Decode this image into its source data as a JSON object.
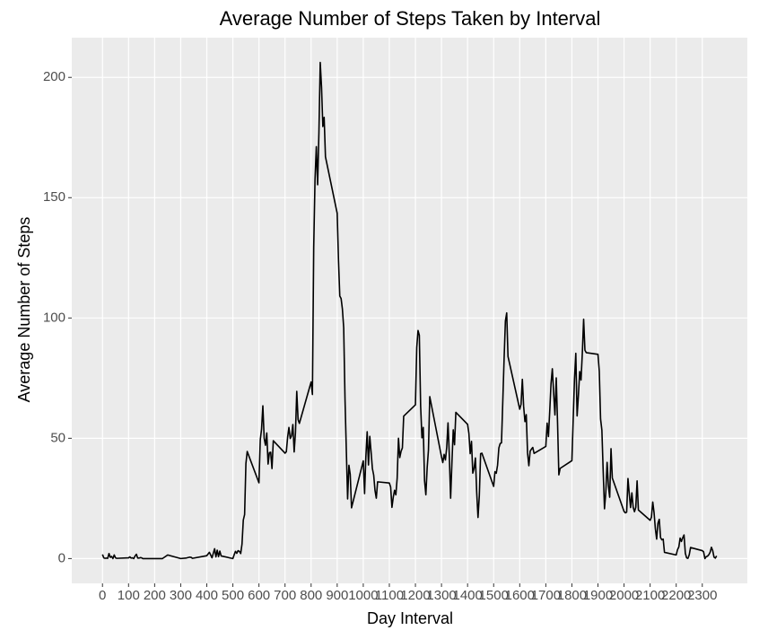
{
  "chart_data": {
    "type": "line",
    "title": "Average Number of Steps Taken by Interval",
    "x_label": "Day Interval",
    "y_label": "Average Number of Steps",
    "x": [
      0,
      5,
      10,
      15,
      20,
      25,
      30,
      35,
      40,
      45,
      50,
      55,
      100,
      105,
      110,
      115,
      120,
      125,
      130,
      135,
      140,
      145,
      150,
      155,
      200,
      230,
      250,
      300,
      320,
      335,
      340,
      345,
      400,
      410,
      420,
      430,
      435,
      440,
      445,
      450,
      455,
      500,
      505,
      510,
      515,
      520,
      525,
      530,
      535,
      540,
      545,
      550,
      555,
      600,
      605,
      610,
      615,
      620,
      625,
      630,
      635,
      640,
      645,
      650,
      655,
      700,
      705,
      710,
      715,
      720,
      725,
      730,
      735,
      740,
      745,
      750,
      755,
      800,
      805,
      810,
      815,
      820,
      825,
      830,
      835,
      840,
      845,
      850,
      855,
      900,
      905,
      910,
      915,
      920,
      925,
      930,
      935,
      940,
      945,
      950,
      955,
      1000,
      1005,
      1010,
      1015,
      1020,
      1025,
      1030,
      1035,
      1040,
      1045,
      1050,
      1055,
      1100,
      1105,
      1110,
      1115,
      1120,
      1125,
      1130,
      1135,
      1140,
      1145,
      1150,
      1155,
      1200,
      1205,
      1210,
      1215,
      1220,
      1225,
      1230,
      1235,
      1240,
      1245,
      1250,
      1255,
      1300,
      1305,
      1310,
      1315,
      1320,
      1325,
      1330,
      1335,
      1340,
      1345,
      1350,
      1355,
      1400,
      1405,
      1410,
      1415,
      1420,
      1425,
      1430,
      1435,
      1440,
      1445,
      1450,
      1455,
      1500,
      1505,
      1510,
      1515,
      1520,
      1525,
      1530,
      1535,
      1540,
      1545,
      1550,
      1555,
      1600,
      1605,
      1610,
      1615,
      1620,
      1625,
      1630,
      1635,
      1640,
      1645,
      1650,
      1655,
      1700,
      1705,
      1710,
      1715,
      1720,
      1725,
      1730,
      1735,
      1740,
      1745,
      1750,
      1755,
      1800,
      1805,
      1810,
      1815,
      1820,
      1825,
      1830,
      1835,
      1840,
      1845,
      1850,
      1855,
      1900,
      1905,
      1910,
      1915,
      1920,
      1925,
      1930,
      1935,
      1940,
      1945,
      1950,
      1955,
      2000,
      2005,
      2010,
      2015,
      2020,
      2025,
      2030,
      2035,
      2040,
      2045,
      2050,
      2055,
      2100,
      2105,
      2110,
      2115,
      2120,
      2125,
      2130,
      2135,
      2140,
      2145,
      2150,
      2155,
      2200,
      2205,
      2210,
      2215,
      2220,
      2225,
      2230,
      2235,
      2240,
      2245,
      2250,
      2255,
      2300,
      2305,
      2310,
      2315,
      2320,
      2325,
      2330,
      2335,
      2340,
      2345,
      2350,
      2355
    ],
    "series": [
      {
        "name": "Average Number of Steps",
        "color": "#000000",
        "values": [
          1.7,
          0.3,
          0.1,
          0.2,
          0.1,
          2.1,
          0.5,
          0.9,
          0,
          1.5,
          0.3,
          0.1,
          0.3,
          0.7,
          0.2,
          0.3,
          0,
          1.1,
          1.8,
          0.2,
          0.2,
          0.4,
          0.3,
          0,
          0,
          0,
          1.5,
          0,
          0.2,
          0.6,
          0.5,
          0.1,
          1.2,
          2.6,
          0.3,
          4.1,
          0.7,
          3.5,
          0.8,
          3.1,
          1.1,
          0,
          1.6,
          3,
          2.2,
          3.3,
          3,
          2.1,
          6,
          16,
          18.3,
          39.5,
          44.5,
          31.5,
          49.3,
          53.8,
          63.5,
          50,
          47.1,
          52.2,
          39.3,
          44,
          44.2,
          37.4,
          49,
          43.8,
          44.4,
          50.5,
          54.5,
          49.9,
          51,
          55.7,
          44.3,
          52.3,
          69.5,
          57.8,
          56.2,
          73.4,
          68.2,
          129.4,
          157.5,
          171.2,
          155.4,
          177.3,
          206.2,
          195.9,
          179.6,
          183.4,
          167,
          143.5,
          124,
          109.1,
          108.1,
          103.7,
          95.9,
          66.2,
          45.2,
          24.8,
          38.8,
          35,
          21.1,
          40.6,
          27,
          42.4,
          52.7,
          38.9,
          50.8,
          44.3,
          37.4,
          34.7,
          28.3,
          25.1,
          31.9,
          31.4,
          29.7,
          21.3,
          25.5,
          28.4,
          26.5,
          33.4,
          50,
          42,
          44.6,
          46,
          59.2,
          63.9,
          87.7,
          94.8,
          92.8,
          63.4,
          50.2,
          54.5,
          32.4,
          26.5,
          37.7,
          45.1,
          67.3,
          42.3,
          39.9,
          43.3,
          41,
          46.2,
          56.4,
          42.8,
          25.1,
          40,
          53.5,
          47.3,
          60.8,
          55.8,
          52,
          43.6,
          48.7,
          35.5,
          37.5,
          41.8,
          27.5,
          17.1,
          26.1,
          43.6,
          43.8,
          30,
          36.1,
          35.5,
          38.8,
          46,
          47.8,
          48.1,
          65.3,
          82.9,
          98.7,
          102.1,
          84,
          62.1,
          64.1,
          74.5,
          63.2,
          56.9,
          59.8,
          43.9,
          38.6,
          44.7,
          45.5,
          46.2,
          43.7,
          46.6,
          56.3,
          50.7,
          61.2,
          72.7,
          78.9,
          68.9,
          59.7,
          75.1,
          56.5,
          34.8,
          37.5,
          40.7,
          58,
          74.7,
          85.3,
          59.3,
          67.8,
          77.7,
          74.2,
          85.3,
          99.5,
          86.6,
          85.6,
          84.9,
          77.8,
          58,
          53.4,
          36.3,
          20.7,
          27.4,
          40,
          30.2,
          25.5,
          45.7,
          33.5,
          19.6,
          19,
          19.3,
          33.3,
          26.8,
          21.2,
          27.3,
          21.3,
          19.5,
          21.3,
          32.3,
          20.2,
          15.9,
          17.2,
          23.5,
          19.2,
          12.5,
          8.1,
          14.7,
          16.3,
          8.7,
          7.8,
          8.1,
          2.6,
          1.5,
          3.7,
          4.8,
          8.5,
          7.1,
          8.7,
          9.8,
          2.2,
          0.3,
          0.1,
          1.6,
          4.6,
          3.3,
          2.8,
          0,
          0.8,
          1,
          1.6,
          2.6,
          4.7,
          3.3,
          0.6,
          0.2,
          1.1
        ]
      }
    ],
    "xlim": [
      -117.75,
      2472.75
    ],
    "ylim": [
      -10.3,
      216.5
    ],
    "xticks": [
      0,
      100,
      200,
      300,
      400,
      500,
      600,
      700,
      800,
      900,
      1000,
      1100,
      1200,
      1300,
      1400,
      1500,
      1600,
      1700,
      1800,
      1900,
      2000,
      2100,
      2200,
      2300
    ],
    "yticks": [
      0,
      50,
      100,
      150,
      200
    ],
    "grid": true
  }
}
